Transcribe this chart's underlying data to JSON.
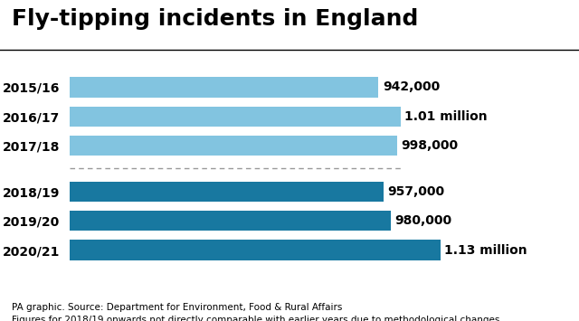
{
  "title": "Fly-tipping incidents in England",
  "categories": [
    "2015/16",
    "2016/17",
    "2017/18",
    "2018/19",
    "2019/20",
    "2020/21"
  ],
  "values": [
    942000,
    1010000,
    998000,
    957000,
    980000,
    1130000
  ],
  "labels": [
    "942,000",
    "1.01 million",
    "998,000",
    "957,000",
    "980,000",
    "1.13 million"
  ],
  "bar_colors": [
    "#82C4E0",
    "#82C4E0",
    "#82C4E0",
    "#1878A0",
    "#1878A0",
    "#1878A0"
  ],
  "max_value": 1200000,
  "footnote_line1": "PA graphic. Source: Department for Environment, Food & Rural Affairs",
  "footnote_line2": "Figures for 2018/19 onwards not directly comparable with earlier years due to methodological changes",
  "bg_color": "#ffffff",
  "title_fontsize": 18,
  "label_fontsize": 10,
  "tick_fontsize": 10,
  "footnote_fontsize": 7.5,
  "bar_height": 0.62,
  "y_positions": [
    7.0,
    6.1,
    5.2,
    3.8,
    2.9,
    2.0
  ]
}
